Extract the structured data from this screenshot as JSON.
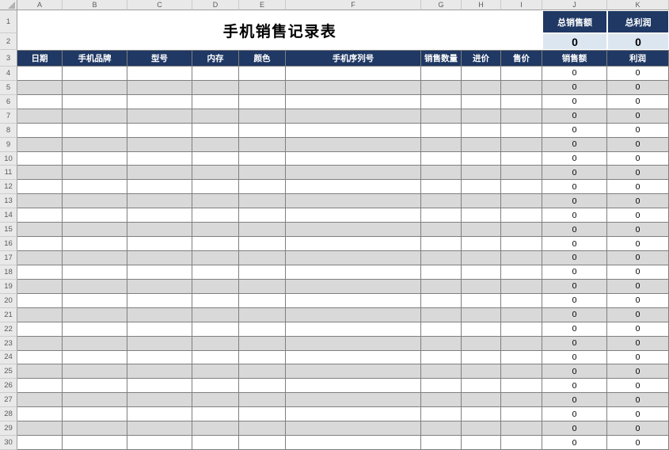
{
  "sheet_title": "手机销售记录表",
  "chrome": {
    "column_letters": [
      "A",
      "B",
      "C",
      "D",
      "E",
      "F",
      "G",
      "H",
      "I",
      "J",
      "K"
    ],
    "row_numbers": [
      "1",
      "2",
      "3",
      "4",
      "5",
      "6",
      "7",
      "8",
      "9",
      "10",
      "11",
      "12",
      "13",
      "14",
      "15",
      "16",
      "17",
      "18",
      "19",
      "20",
      "21",
      "22",
      "23",
      "24",
      "25",
      "26",
      "27",
      "28",
      "29",
      "30"
    ]
  },
  "totals": {
    "sales_label": "总销售额",
    "profit_label": "总利润",
    "sales_value": "0",
    "profit_value": "0"
  },
  "table": {
    "headers": [
      "日期",
      "手机品牌",
      "型号",
      "内存",
      "颜色",
      "手机序列号",
      "销售数量",
      "进价",
      "售价",
      "销售额",
      "利润"
    ],
    "rows": [
      [
        "",
        "",
        "",
        "",
        "",
        "",
        "",
        "",
        "",
        "0",
        "0"
      ],
      [
        "",
        "",
        "",
        "",
        "",
        "",
        "",
        "",
        "",
        "0",
        "0"
      ],
      [
        "",
        "",
        "",
        "",
        "",
        "",
        "",
        "",
        "",
        "0",
        "0"
      ],
      [
        "",
        "",
        "",
        "",
        "",
        "",
        "",
        "",
        "",
        "0",
        "0"
      ],
      [
        "",
        "",
        "",
        "",
        "",
        "",
        "",
        "",
        "",
        "0",
        "0"
      ],
      [
        "",
        "",
        "",
        "",
        "",
        "",
        "",
        "",
        "",
        "0",
        "0"
      ],
      [
        "",
        "",
        "",
        "",
        "",
        "",
        "",
        "",
        "",
        "0",
        "0"
      ],
      [
        "",
        "",
        "",
        "",
        "",
        "",
        "",
        "",
        "",
        "0",
        "0"
      ],
      [
        "",
        "",
        "",
        "",
        "",
        "",
        "",
        "",
        "",
        "0",
        "0"
      ],
      [
        "",
        "",
        "",
        "",
        "",
        "",
        "",
        "",
        "",
        "0",
        "0"
      ],
      [
        "",
        "",
        "",
        "",
        "",
        "",
        "",
        "",
        "",
        "0",
        "0"
      ],
      [
        "",
        "",
        "",
        "",
        "",
        "",
        "",
        "",
        "",
        "0",
        "0"
      ],
      [
        "",
        "",
        "",
        "",
        "",
        "",
        "",
        "",
        "",
        "0",
        "0"
      ],
      [
        "",
        "",
        "",
        "",
        "",
        "",
        "",
        "",
        "",
        "0",
        "0"
      ],
      [
        "",
        "",
        "",
        "",
        "",
        "",
        "",
        "",
        "",
        "0",
        "0"
      ],
      [
        "",
        "",
        "",
        "",
        "",
        "",
        "",
        "",
        "",
        "0",
        "0"
      ],
      [
        "",
        "",
        "",
        "",
        "",
        "",
        "",
        "",
        "",
        "0",
        "0"
      ],
      [
        "",
        "",
        "",
        "",
        "",
        "",
        "",
        "",
        "",
        "0",
        "0"
      ],
      [
        "",
        "",
        "",
        "",
        "",
        "",
        "",
        "",
        "",
        "0",
        "0"
      ],
      [
        "",
        "",
        "",
        "",
        "",
        "",
        "",
        "",
        "",
        "0",
        "0"
      ],
      [
        "",
        "",
        "",
        "",
        "",
        "",
        "",
        "",
        "",
        "0",
        "0"
      ],
      [
        "",
        "",
        "",
        "",
        "",
        "",
        "",
        "",
        "",
        "0",
        "0"
      ],
      [
        "",
        "",
        "",
        "",
        "",
        "",
        "",
        "",
        "",
        "0",
        "0"
      ],
      [
        "",
        "",
        "",
        "",
        "",
        "",
        "",
        "",
        "",
        "0",
        "0"
      ],
      [
        "",
        "",
        "",
        "",
        "",
        "",
        "",
        "",
        "",
        "0",
        "0"
      ],
      [
        "",
        "",
        "",
        "",
        "",
        "",
        "",
        "",
        "",
        "0",
        "0"
      ],
      [
        "",
        "",
        "",
        "",
        "",
        "",
        "",
        "",
        "",
        "0",
        "0"
      ]
    ]
  },
  "colors": {
    "header_navy": "#1F3864",
    "totals_blue": "#DCE6F1",
    "alt_row_gray": "#D9D9D9",
    "grid_line": "#7f7f7f"
  }
}
